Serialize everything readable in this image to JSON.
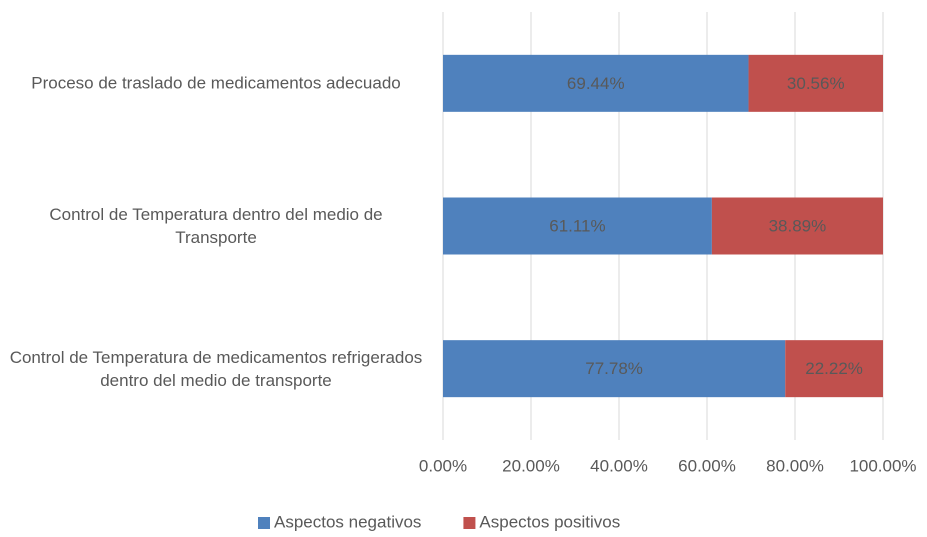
{
  "chart_data": {
    "type": "stacked_bar_horizontal",
    "categories": [
      "Proceso de traslado de medicamentos adecuado",
      "Control de Temperatura dentro del medio de Transporte",
      "Control de Temperatura de medicamentos refrigerados dentro del medio de transporte"
    ],
    "series": [
      {
        "name": "Aspectos negativos",
        "color": "#4f81bd",
        "values": [
          69.44,
          61.11,
          77.78
        ],
        "value_labels": [
          "69.44%",
          "61.11%",
          "77.78%"
        ]
      },
      {
        "name": "Aspectos positivos",
        "color": "#c0504d",
        "values": [
          30.56,
          38.89,
          22.22
        ],
        "value_labels": [
          "30.56%",
          "38.89%",
          "22.22%"
        ]
      }
    ],
    "xlim": [
      0,
      100
    ],
    "xticks": [
      {
        "value": 0,
        "label": "0.00%"
      },
      {
        "value": 20,
        "label": "20.00%"
      },
      {
        "value": 40,
        "label": "40.00%"
      },
      {
        "value": 60,
        "label": "60.00%"
      },
      {
        "value": 80,
        "label": "80.00%"
      },
      {
        "value": 100,
        "label": "100.00%"
      }
    ],
    "grid": true,
    "legend": "bottom"
  }
}
